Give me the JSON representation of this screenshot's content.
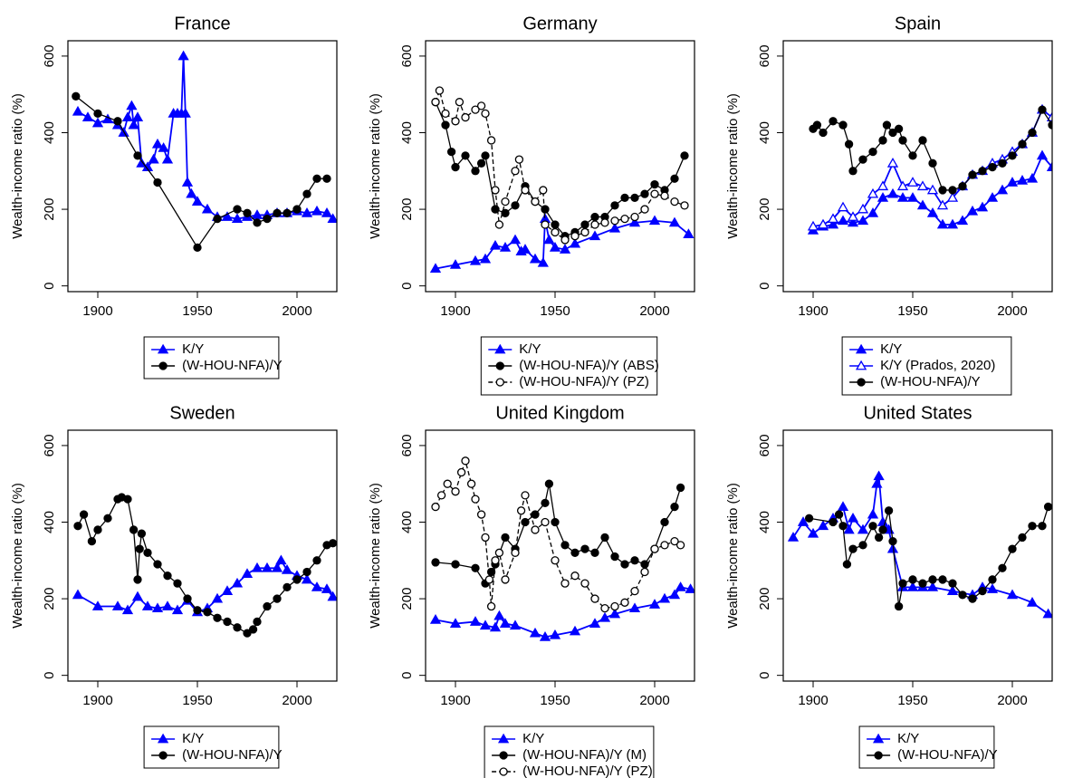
{
  "chart_data": [
    {
      "type": "line",
      "title": "France",
      "ylabel": "Wealth-income ratio (%)",
      "xlim": [
        1885,
        2020
      ],
      "ylim": [
        -15,
        640
      ],
      "xticks": [
        1900,
        1950,
        2000
      ],
      "yticks": [
        0,
        200,
        400,
        600
      ],
      "series": [
        {
          "name": "K/Y",
          "color": "#0000ff",
          "marker": "triangle",
          "dash": false,
          "x": [
            1890,
            1895,
            1900,
            1905,
            1910,
            1913,
            1915,
            1917,
            1918,
            1920,
            1922,
            1925,
            1928,
            1930,
            1933,
            1935,
            1938,
            1940,
            1942,
            1943,
            1944,
            1945,
            1947,
            1950,
            1955,
            1960,
            1965,
            1970,
            1975,
            1980,
            1985,
            1990,
            1995,
            2000,
            2005,
            2010,
            2015,
            2018
          ],
          "values": [
            455,
            440,
            425,
            435,
            420,
            400,
            440,
            470,
            420,
            440,
            320,
            310,
            330,
            370,
            360,
            330,
            450,
            450,
            450,
            600,
            450,
            270,
            240,
            220,
            200,
            180,
            180,
            175,
            180,
            185,
            185,
            190,
            190,
            195,
            190,
            195,
            190,
            175
          ]
        },
        {
          "name": "(W-HOU-NFA)/Y",
          "color": "#000000",
          "marker": "circle",
          "dash": false,
          "x": [
            1889,
            1900,
            1910,
            1920,
            1930,
            1950,
            1960,
            1970,
            1975,
            1980,
            1985,
            1990,
            1995,
            2000,
            2005,
            2010,
            2015
          ],
          "values": [
            495,
            450,
            430,
            340,
            270,
            100,
            175,
            200,
            190,
            165,
            175,
            190,
            190,
            200,
            240,
            280,
            280
          ]
        }
      ]
    },
    {
      "type": "line",
      "title": "Germany",
      "ylabel": "Wealth-income ratio (%)",
      "xlim": [
        1885,
        2020
      ],
      "ylim": [
        -15,
        640
      ],
      "xticks": [
        1900,
        1950,
        2000
      ],
      "yticks": [
        0,
        200,
        400,
        600
      ],
      "series": [
        {
          "name": "K/Y",
          "color": "#0000ff",
          "marker": "triangle",
          "dash": false,
          "x": [
            1890,
            1900,
            1910,
            1915,
            1920,
            1925,
            1930,
            1933,
            1935,
            1940,
            1944,
            1945,
            1947,
            1950,
            1955,
            1960,
            1970,
            1980,
            1990,
            2000,
            2010,
            2017
          ],
          "values": [
            45,
            55,
            65,
            70,
            105,
            100,
            120,
            90,
            95,
            70,
            60,
            175,
            120,
            100,
            95,
            110,
            130,
            150,
            165,
            170,
            165,
            135
          ]
        },
        {
          "name": "(W-HOU-NFA)/Y (ABS)",
          "color": "#000000",
          "marker": "circle",
          "dash": false,
          "x": [
            1890,
            1895,
            1898,
            1900,
            1905,
            1910,
            1913,
            1915,
            1920,
            1925,
            1930,
            1935,
            1940,
            1945,
            1950,
            1955,
            1960,
            1965,
            1970,
            1975,
            1980,
            1985,
            1990,
            1995,
            2000,
            2005,
            2010,
            2015
          ],
          "values": [
            480,
            420,
            350,
            310,
            340,
            300,
            320,
            340,
            200,
            190,
            210,
            260,
            220,
            200,
            160,
            130,
            140,
            160,
            180,
            180,
            210,
            230,
            230,
            240,
            265,
            250,
            280,
            340
          ]
        },
        {
          "name": "(W-HOU-NFA)/Y (PZ)",
          "color": "#000000",
          "marker": "open-circle",
          "dash": true,
          "x": [
            1890,
            1892,
            1895,
            1900,
            1902,
            1905,
            1910,
            1913,
            1915,
            1918,
            1920,
            1922,
            1925,
            1930,
            1932,
            1935,
            1940,
            1944,
            1945,
            1950,
            1955,
            1960,
            1965,
            1970,
            1975,
            1980,
            1985,
            1990,
            1995,
            2000,
            2005,
            2010,
            2015
          ],
          "values": [
            480,
            510,
            450,
            430,
            480,
            440,
            460,
            470,
            450,
            380,
            250,
            160,
            220,
            300,
            330,
            250,
            220,
            250,
            160,
            140,
            120,
            130,
            140,
            160,
            165,
            170,
            175,
            180,
            200,
            240,
            235,
            220,
            210
          ]
        }
      ]
    },
    {
      "type": "line",
      "title": "Spain",
      "ylabel": "Wealth-income ratio (%)",
      "xlim": [
        1885,
        2020
      ],
      "ylim": [
        -15,
        640
      ],
      "xticks": [
        1900,
        1950,
        2000
      ],
      "yticks": [
        0,
        200,
        400,
        600
      ],
      "series": [
        {
          "name": "K/Y",
          "color": "#0000ff",
          "marker": "triangle",
          "dash": false,
          "x": [
            1900,
            1905,
            1910,
            1915,
            1920,
            1925,
            1930,
            1935,
            1940,
            1945,
            1950,
            1955,
            1960,
            1965,
            1970,
            1975,
            1980,
            1985,
            1990,
            1995,
            2000,
            2005,
            2010,
            2015,
            2020
          ],
          "values": [
            145,
            155,
            160,
            170,
            165,
            170,
            190,
            230,
            240,
            230,
            230,
            210,
            190,
            160,
            160,
            170,
            195,
            205,
            230,
            250,
            270,
            275,
            280,
            340,
            310
          ]
        },
        {
          "name": "K/Y (Prados, 2020)",
          "color": "#0000ff",
          "marker": "open-triangle",
          "dash": false,
          "x": [
            1900,
            1905,
            1910,
            1915,
            1920,
            1925,
            1930,
            1935,
            1940,
            1945,
            1950,
            1955,
            1960,
            1965,
            1970,
            1975,
            1980,
            1985,
            1990,
            1995,
            2000,
            2005,
            2010,
            2015,
            2020
          ],
          "values": [
            155,
            160,
            175,
            205,
            180,
            200,
            240,
            260,
            320,
            260,
            270,
            260,
            250,
            210,
            230,
            260,
            290,
            300,
            320,
            330,
            350,
            370,
            400,
            460,
            440
          ]
        },
        {
          "name": "(W-HOU-NFA)/Y",
          "color": "#000000",
          "marker": "circle",
          "dash": false,
          "x": [
            1900,
            1902,
            1905,
            1910,
            1915,
            1918,
            1920,
            1925,
            1930,
            1935,
            1937,
            1940,
            1943,
            1945,
            1950,
            1955,
            1960,
            1965,
            1970,
            1975,
            1980,
            1985,
            1990,
            1995,
            2000,
            2005,
            2010,
            2015,
            2020
          ],
          "values": [
            410,
            420,
            400,
            430,
            420,
            370,
            300,
            330,
            350,
            380,
            420,
            400,
            410,
            380,
            340,
            380,
            320,
            250,
            250,
            260,
            290,
            300,
            310,
            320,
            340,
            370,
            400,
            460,
            420
          ]
        }
      ]
    },
    {
      "type": "line",
      "title": "Sweden",
      "ylabel": "Wealth-income ratio (%)",
      "xlim": [
        1885,
        2020
      ],
      "ylim": [
        -15,
        640
      ],
      "xticks": [
        1900,
        1950,
        2000
      ],
      "yticks": [
        0,
        200,
        400,
        600
      ],
      "series": [
        {
          "name": "K/Y",
          "color": "#0000ff",
          "marker": "triangle",
          "dash": false,
          "x": [
            1890,
            1900,
            1910,
            1915,
            1920,
            1925,
            1930,
            1935,
            1940,
            1945,
            1950,
            1955,
            1960,
            1965,
            1970,
            1975,
            1980,
            1985,
            1990,
            1992,
            1995,
            2000,
            2005,
            2010,
            2015,
            2018
          ],
          "values": [
            210,
            180,
            180,
            170,
            205,
            180,
            175,
            180,
            170,
            195,
            165,
            175,
            200,
            220,
            240,
            265,
            280,
            280,
            280,
            300,
            275,
            260,
            250,
            230,
            225,
            205
          ]
        },
        {
          "name": "(W-HOU-NFA)/Y",
          "color": "#000000",
          "marker": "circle",
          "dash": false,
          "x": [
            1890,
            1893,
            1897,
            1900,
            1905,
            1910,
            1912,
            1915,
            1918,
            1920,
            1921,
            1922,
            1925,
            1930,
            1935,
            1940,
            1945,
            1950,
            1955,
            1960,
            1965,
            1970,
            1975,
            1978,
            1980,
            1985,
            1990,
            1995,
            2000,
            2005,
            2010,
            2015,
            2018
          ],
          "values": [
            390,
            420,
            350,
            380,
            410,
            460,
            465,
            460,
            380,
            250,
            330,
            370,
            320,
            290,
            260,
            240,
            200,
            170,
            165,
            150,
            140,
            125,
            110,
            120,
            140,
            180,
            200,
            230,
            250,
            270,
            300,
            340,
            345
          ]
        }
      ]
    },
    {
      "type": "line",
      "title": "United Kingdom",
      "ylabel": "Wealth-income ratio (%)",
      "xlim": [
        1885,
        2020
      ],
      "ylim": [
        -15,
        640
      ],
      "xticks": [
        1900,
        1950,
        2000
      ],
      "yticks": [
        0,
        200,
        400,
        600
      ],
      "series": [
        {
          "name": "K/Y",
          "color": "#0000ff",
          "marker": "triangle",
          "dash": false,
          "x": [
            1890,
            1900,
            1910,
            1915,
            1920,
            1922,
            1925,
            1930,
            1940,
            1945,
            1950,
            1960,
            1970,
            1975,
            1980,
            1990,
            2000,
            2005,
            2010,
            2013,
            2018
          ],
          "values": [
            145,
            135,
            140,
            130,
            125,
            155,
            135,
            130,
            110,
            100,
            105,
            115,
            135,
            150,
            160,
            175,
            185,
            200,
            210,
            230,
            225
          ]
        },
        {
          "name": "(W-HOU-NFA)/Y (M)",
          "color": "#000000",
          "marker": "circle",
          "dash": false,
          "x": [
            1890,
            1900,
            1910,
            1915,
            1918,
            1920,
            1925,
            1930,
            1935,
            1940,
            1945,
            1947,
            1950,
            1955,
            1960,
            1965,
            1970,
            1975,
            1980,
            1985,
            1990,
            1995,
            2000,
            2005,
            2010,
            2013
          ],
          "values": [
            295,
            290,
            280,
            240,
            270,
            290,
            360,
            330,
            400,
            420,
            450,
            500,
            400,
            340,
            320,
            330,
            320,
            360,
            310,
            290,
            300,
            290,
            330,
            400,
            440,
            490
          ]
        },
        {
          "name": "(W-HOU-NFA)/Y (PZ)",
          "color": "#000000",
          "marker": "open-circle",
          "dash": true,
          "x": [
            1890,
            1893,
            1896,
            1900,
            1903,
            1905,
            1908,
            1910,
            1913,
            1915,
            1917,
            1918,
            1920,
            1922,
            1925,
            1930,
            1933,
            1935,
            1940,
            1945,
            1950,
            1955,
            1960,
            1965,
            1970,
            1975,
            1980,
            1985,
            1990,
            1995,
            2000,
            2005,
            2010,
            2013
          ],
          "values": [
            440,
            470,
            500,
            480,
            530,
            560,
            500,
            460,
            420,
            360,
            250,
            180,
            300,
            320,
            250,
            320,
            430,
            470,
            380,
            400,
            300,
            240,
            260,
            240,
            200,
            175,
            180,
            190,
            220,
            270,
            330,
            340,
            350,
            340
          ]
        }
      ]
    },
    {
      "type": "line",
      "title": "United States",
      "ylabel": "Wealth-income ratio (%)",
      "xlim": [
        1885,
        2020
      ],
      "ylim": [
        -15,
        640
      ],
      "xticks": [
        1900,
        1950,
        2000
      ],
      "yticks": [
        0,
        200,
        400,
        600
      ],
      "series": [
        {
          "name": "K/Y",
          "color": "#0000ff",
          "marker": "triangle",
          "dash": false,
          "x": [
            1890,
            1895,
            1900,
            1905,
            1910,
            1915,
            1918,
            1920,
            1925,
            1930,
            1932,
            1933,
            1935,
            1938,
            1940,
            1945,
            1950,
            1955,
            1960,
            1970,
            1980,
            1985,
            1990,
            2000,
            2010,
            2018
          ],
          "values": [
            360,
            400,
            370,
            390,
            410,
            440,
            380,
            410,
            380,
            420,
            500,
            520,
            400,
            380,
            330,
            230,
            230,
            230,
            230,
            220,
            210,
            230,
            225,
            210,
            190,
            160
          ]
        },
        {
          "name": "(W-HOU-NFA)/Y",
          "color": "#000000",
          "marker": "circle",
          "dash": false,
          "x": [
            1898,
            1910,
            1913,
            1915,
            1917,
            1920,
            1925,
            1930,
            1933,
            1935,
            1938,
            1940,
            1943,
            1945,
            1950,
            1955,
            1960,
            1965,
            1970,
            1975,
            1980,
            1985,
            1990,
            1995,
            2000,
            2005,
            2010,
            2015,
            2018
          ],
          "values": [
            410,
            400,
            420,
            390,
            290,
            330,
            340,
            390,
            360,
            380,
            430,
            350,
            180,
            240,
            250,
            240,
            250,
            250,
            240,
            210,
            200,
            220,
            250,
            280,
            330,
            360,
            390,
            390,
            440
          ]
        }
      ]
    }
  ]
}
